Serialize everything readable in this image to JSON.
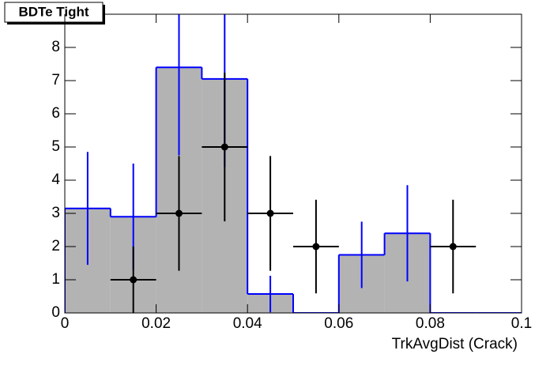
{
  "chart_data": {
    "type": "histogram",
    "title": "BDTe Tight",
    "x_label": "TrkAvgDist (Crack)",
    "bins": [
      0,
      0.01,
      0.02,
      0.03,
      0.04,
      0.05,
      0.06,
      0.07,
      0.08,
      0.09,
      0.1
    ],
    "series": [
      {
        "color": "#0000ff",
        "fill": "#b3b3b3",
        "values": [
          3.15,
          2.9,
          7.4,
          7.05,
          0.57,
          0,
          1.75,
          2.4,
          0,
          0
        ],
        "errors": [
          1.7,
          1.6,
          2.65,
          2.65,
          0.55,
          null,
          1.0,
          1.45,
          null,
          null
        ]
      },
      {
        "color": "#000000",
        "x": [
          0.015,
          0.025,
          0.035,
          0.045,
          0.055,
          0.085
        ],
        "values": [
          1,
          3,
          5,
          3,
          2,
          2
        ],
        "errors": [
          1,
          1.73,
          2.24,
          1.73,
          1.41,
          1.41
        ]
      }
    ],
    "xlim": [
      0,
      0.1
    ],
    "ylim": [
      0,
      9
    ],
    "xticks": [
      0,
      0.02,
      0.04,
      0.06,
      0.08,
      0.1
    ],
    "yticks": [
      0,
      1,
      2,
      3,
      4,
      5,
      6,
      7,
      8
    ]
  }
}
